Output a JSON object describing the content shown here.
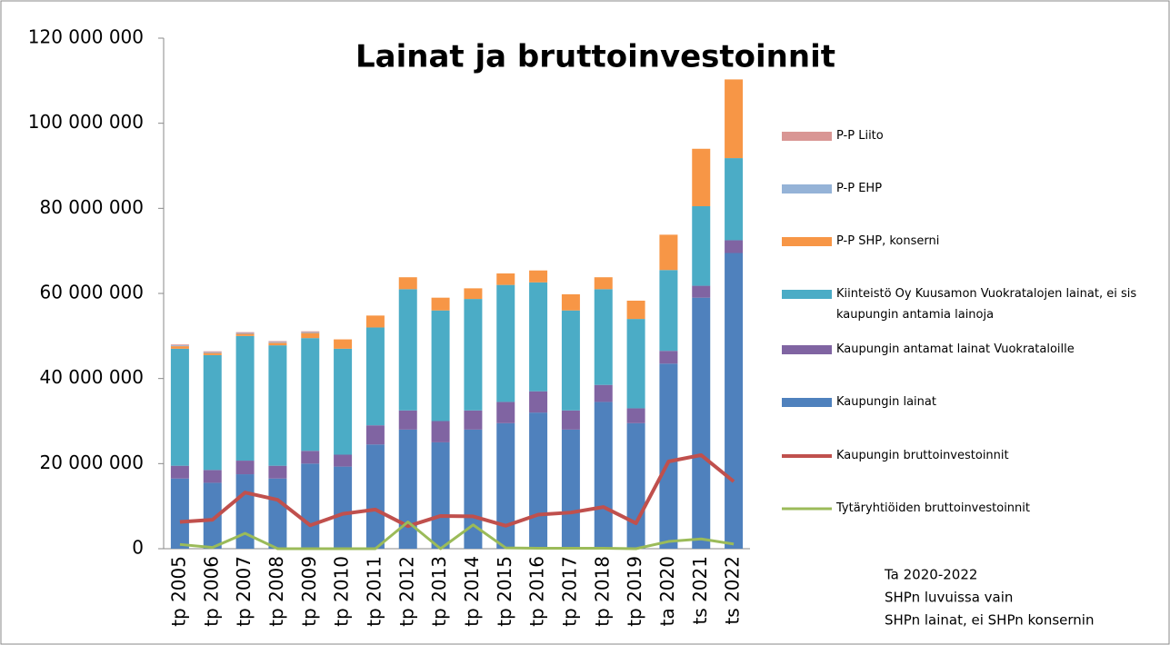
{
  "chart_data": {
    "type": "stacked_bar_line",
    "title": "Lainat  ja bruttoinvestoinnit",
    "categories": [
      "tp 2005",
      "tp 2006",
      "tp 2007",
      "tp 2008",
      "tp 2009",
      "tp 2010",
      "tp 2011",
      "tp 2012",
      "tp 2013",
      "tp 2014",
      "tp 2015",
      "tp 2016",
      "tp 2017",
      "tp 2018",
      "tp 2019",
      "ta 2020",
      "ts 2021",
      "ts 2022"
    ],
    "series": [
      {
        "name": "Kaupungin lainat",
        "kind": "bar",
        "color": "#4f81bd",
        "values": [
          16500000,
          15500000,
          17500000,
          16500000,
          20000000,
          19300000,
          24500000,
          28000000,
          25000000,
          28000000,
          29500000,
          32000000,
          28000000,
          34500000,
          29500000,
          43500000,
          59000000,
          69500000
        ]
      },
      {
        "name": "Kaupungin antamat lainat Vuokrataloille",
        "kind": "bar",
        "color": "#8064a2",
        "values": [
          3000000,
          3000000,
          3200000,
          3000000,
          3000000,
          2800000,
          4500000,
          4500000,
          5000000,
          4500000,
          5000000,
          5000000,
          4500000,
          4000000,
          3500000,
          3000000,
          2800000,
          3000000
        ]
      },
      {
        "name": "Kiinteistö Oy Kuusamon Vuokratalojen lainat, ei sis kaupungin antamia lainoja",
        "kind": "bar",
        "color": "#4bacc6",
        "values": [
          27500000,
          27000000,
          29300000,
          28300000,
          26500000,
          24900000,
          23000000,
          28500000,
          26000000,
          26200000,
          27500000,
          25600000,
          23500000,
          22500000,
          21000000,
          19000000,
          18700000,
          19300000
        ]
      },
      {
        "name": "P-P SHP, konserni",
        "kind": "bar",
        "color": "#f79646",
        "values": [
          600000,
          500000,
          500000,
          600000,
          1200000,
          2200000,
          2800000,
          2800000,
          3000000,
          2500000,
          2700000,
          2800000,
          3800000,
          2800000,
          4300000,
          8300000,
          13500000,
          18500000
        ]
      },
      {
        "name": "P-P EHP",
        "kind": "bar",
        "color": "#95b3d7",
        "values": [
          200000,
          200000,
          200000,
          200000,
          200000,
          0,
          0,
          0,
          0,
          0,
          0,
          0,
          0,
          0,
          0,
          0,
          0,
          0
        ]
      },
      {
        "name": "P-P Liito",
        "kind": "bar",
        "color": "#d99694",
        "values": [
          200000,
          200000,
          200000,
          200000,
          200000,
          0,
          0,
          0,
          0,
          0,
          0,
          0,
          0,
          0,
          0,
          0,
          0,
          0
        ]
      },
      {
        "name": "Kaupungin bruttoinvestoinnit",
        "kind": "line",
        "color": "#c0504d",
        "values": [
          6300000,
          6800000,
          13200000,
          11500000,
          5500000,
          8200000,
          9200000,
          5300000,
          7700000,
          7600000,
          5400000,
          8000000,
          8500000,
          9800000,
          6000000,
          20500000,
          22000000,
          15800000
        ]
      },
      {
        "name": "Tytäryhtiöiden bruttoinvestoinnit",
        "kind": "line",
        "color": "#9bbb59",
        "values": [
          1000000,
          300000,
          3600000,
          0,
          0,
          0,
          0,
          6300000,
          0,
          5600000,
          200000,
          100000,
          100000,
          100000,
          0,
          1700000,
          2300000,
          1100000
        ]
      }
    ],
    "ylim": [
      0,
      120000000
    ],
    "yticks": [
      0,
      {
        "value": 20000000,
        "label": "20 000 000"
      },
      {
        "value": 40000000,
        "label": "40 000 000"
      },
      {
        "value": 60000000,
        "label": "60 000 000"
      },
      {
        "value": 80000000,
        "label": "80 000 000"
      },
      {
        "value": 100000000,
        "label": "100 000 000"
      },
      {
        "value": 120000000,
        "label": "120 000 000"
      }
    ],
    "notes": [
      "Ta 2020-2022",
      "SHPn luvuissa vain",
      "SHPn lainat, ei SHPn konsernin"
    ]
  }
}
